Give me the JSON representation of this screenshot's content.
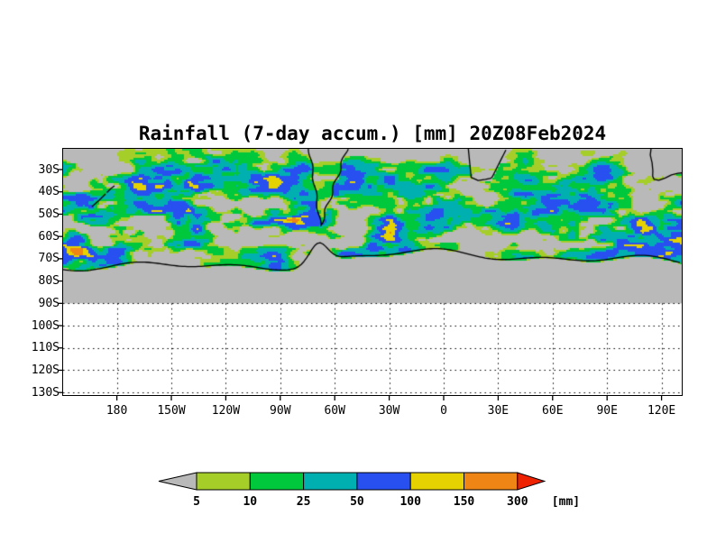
{
  "title": "Rainfall (7-day accum.) [mm] 20Z08Feb2024",
  "chart_data": {
    "type": "heatmap",
    "title": "Rainfall (7-day accum.) [mm] 20Z08Feb2024",
    "variable": "Rainfall, 7-day accumulation",
    "units": "mm",
    "valid_time": "20Z08Feb2024",
    "projection": "latitude-longitude",
    "x_ticks": [
      "180",
      "150W",
      "120W",
      "90W",
      "60W",
      "30W",
      "0",
      "30E",
      "60E",
      "90E",
      "120E"
    ],
    "y_ticks": [
      "30S",
      "40S",
      "50S",
      "60S",
      "70S",
      "80S",
      "90S",
      "100S",
      "110S",
      "120S",
      "130S"
    ],
    "grid": "dotted, visible south of 90S",
    "legend": {
      "position": "bottom",
      "units_label": "[mm]",
      "thresholds": [
        5,
        10,
        25,
        50,
        100,
        150,
        300
      ],
      "colors": {
        "below_min": "#b9b9b9",
        "bands": [
          "#a6ce28",
          "#00c83c",
          "#00b0b0",
          "#2850f0",
          "#e6d200",
          "#ee8514"
        ],
        "above_max": "#ee2200"
      }
    },
    "colors": {
      "no_data": "#b9b9b9",
      "below_90S_background": "#ffffff",
      "coastline": "#000000",
      "frame": "#000000"
    },
    "notes": "7-day accumulated rainfall over the Southern Ocean between ~30S and the Antarctic coast; circumpolar storm-track band ~45S-70S of green/cyan/blue with embedded yellow-orange maxima of 100-300+ mm; gray = below 5 mm; area south of 90S is outside the data domain."
  }
}
